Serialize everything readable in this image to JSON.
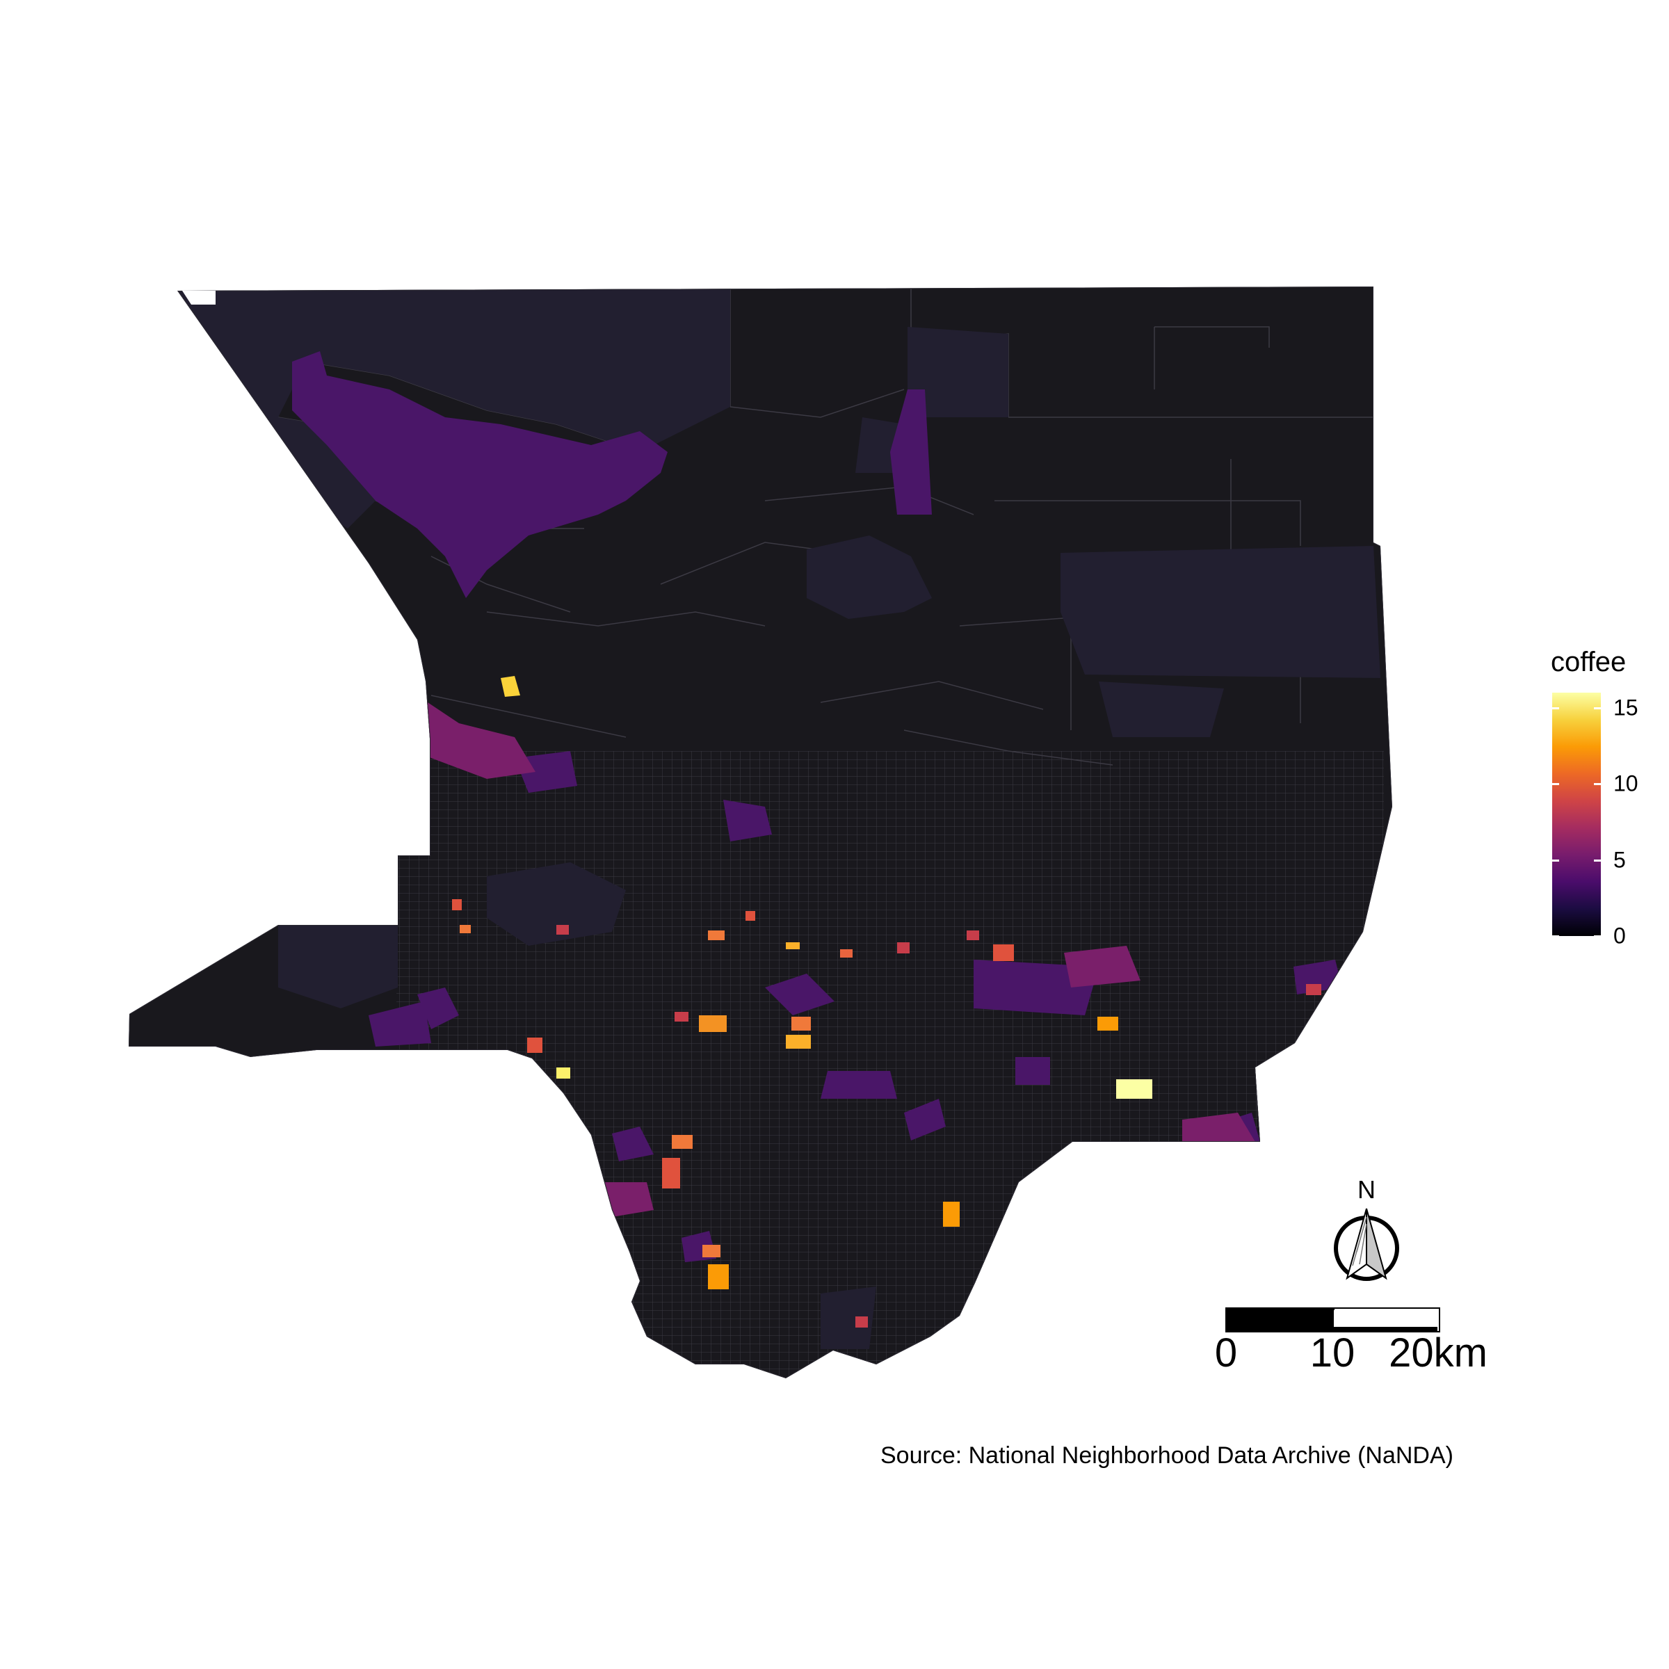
{
  "map": {
    "legend_title": "coffee",
    "legend_ticks": [
      "15",
      "10",
      "5",
      "0"
    ],
    "legend_tick_values": [
      15,
      10,
      5,
      0
    ],
    "legend_max": 16,
    "north_label": "N",
    "scale_labels": [
      "0",
      "10",
      "20km"
    ],
    "caption": "Source: National Neighborhood Data Archive (NaNDA)",
    "colors": {
      "low": "#18171c",
      "min_tract": "#221f30",
      "mid": "#4a1668",
      "high": "#e0523d",
      "max": "#fcffa4",
      "tract_border": "#4a4a52"
    }
  }
}
